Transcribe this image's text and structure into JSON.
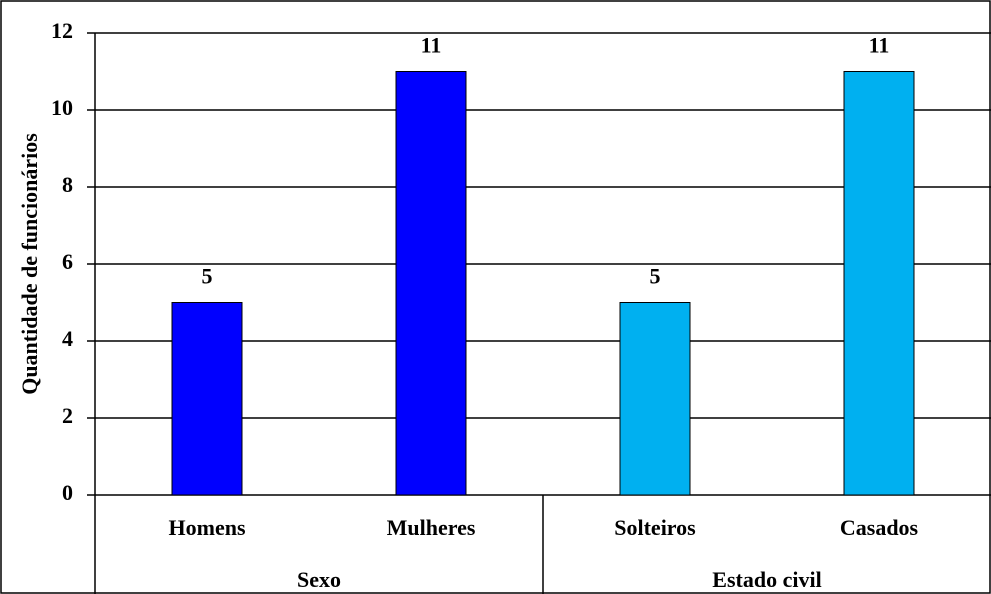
{
  "chart_data": {
    "type": "bar",
    "y_label": "Quantidade de funcionários",
    "groups": [
      {
        "name": "Sexo",
        "categories": [
          "Homens",
          "Mulheres"
        ],
        "values": [
          5,
          11
        ],
        "color": "#0000ff"
      },
      {
        "name": "Estado civil",
        "categories": [
          "Solteiros",
          "Casados"
        ],
        "values": [
          5,
          11
        ],
        "color": "#00b0f0"
      }
    ],
    "ylim": [
      0,
      12
    ],
    "yticks": [
      0,
      2,
      4,
      6,
      8,
      10,
      12
    ],
    "grid": true
  }
}
